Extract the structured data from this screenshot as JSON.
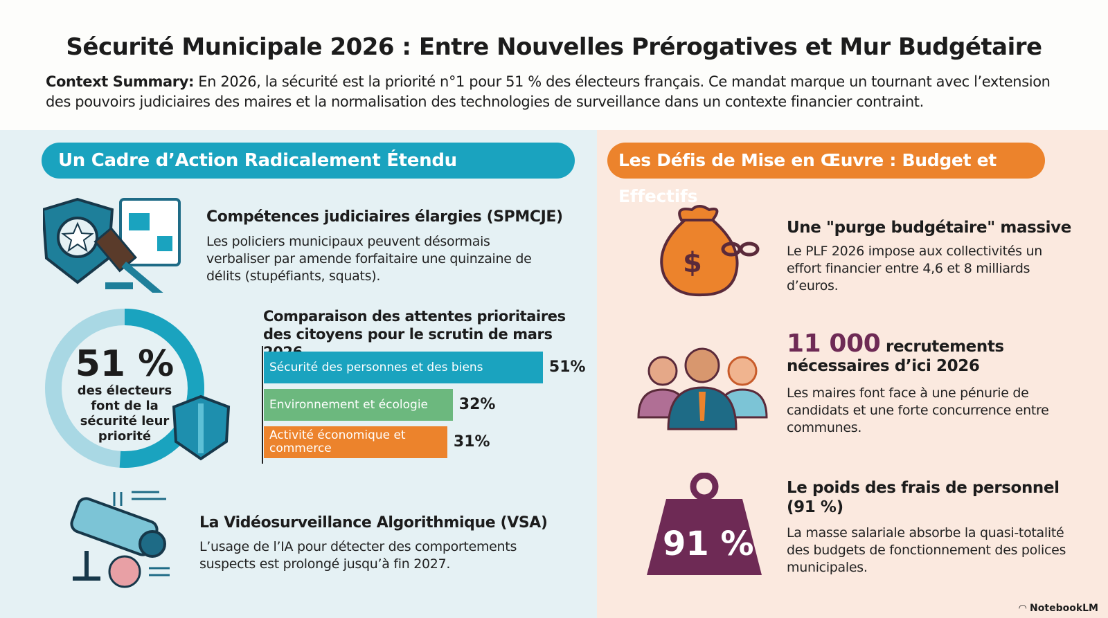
{
  "header": {
    "title": "Sécurité Municipale 2026 : Entre Nouvelles Prérogatives et Mur Budgétaire",
    "summary_label": "Context Summary:",
    "summary_text": " En 2026, la sécurité est la priorité n°1 pour 51 % des électeurs français. Ce mandat marque un tournant avec l’extension des pouvoirs judiciaires des maires et la normalisation des technologies de surveillance dans un contexte financier contraint."
  },
  "left": {
    "section_title": "Un Cadre d’Action Radicalement Étendu",
    "competences": {
      "title": "Compétences judiciaires élargies (SPMCJE)",
      "text": "Les policiers municipaux peuvent désormais verbaliser par amende forfaitaire une quinzaine de délits (stupéfiants, squats)."
    },
    "donut": {
      "value": "51 %",
      "label": "des électeurs font de la sécurité leur priorité",
      "fraction": 0.51
    },
    "vsa": {
      "title": "La Vidéosurveillance Algorithmique (VSA)",
      "text": "L’usage de l’IA pour détecter des comportements suspects est prolongé jusqu’à fin 2027."
    }
  },
  "chart_data": {
    "type": "bar",
    "orientation": "horizontal",
    "title": "Comparaison des attentes prioritaires des citoyens pour le scrutin de mars 2026",
    "categories": [
      "Sécurité des personnes et des biens",
      "Environnement et écologie",
      "Activité économique et commerce"
    ],
    "values": [
      51,
      32,
      31
    ],
    "value_labels": [
      "51%",
      "32%",
      "31%"
    ],
    "colors": [
      "#1aa3bf",
      "#6cb87e",
      "#ec832c"
    ],
    "unit": "%"
  },
  "right": {
    "section_title": "Les Défis de Mise en Œuvre : Budget et Effectifs",
    "budget": {
      "title": "Une \"purge budgétaire\" massive",
      "text": "Le PLF 2026 impose aux collectivités un effort financier entre 4,6 et 8 milliards d’euros."
    },
    "recrutement": {
      "number": "11 000",
      "title_rest": " recrutements nécessaires d’ici 2026",
      "text": "Les maires font face à une pénurie de candidats et une forte concurrence entre communes."
    },
    "personnel": {
      "title": "Le poids des frais de personnel (91 %)",
      "weight_label": "91 %",
      "text": "La masse salariale absorbe la quasi-totalité des budgets de fonctionnement des polices municipales."
    }
  },
  "footer": {
    "brand": "NotebookLM"
  },
  "colors": {
    "teal": "#1aa3bf",
    "orange": "#ec832c",
    "plum": "#6e2a55"
  }
}
